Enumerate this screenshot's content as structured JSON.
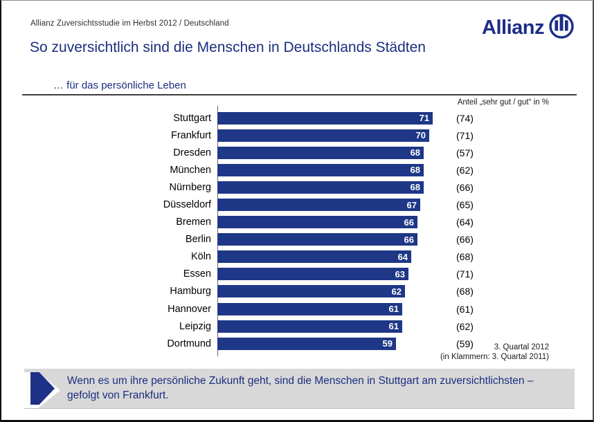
{
  "header": {
    "eyebrow": "Allianz Zuversichtsstudie im Herbst 2012 / Deutschland",
    "title": "So zuversichtlich sind die Menschen in Deutschlands Städten"
  },
  "logo": {
    "text": "Allianz",
    "icon": "allianz-circle-bars-logo",
    "color": "#1d2d87"
  },
  "chart_data": {
    "type": "bar",
    "orientation": "horizontal",
    "title": "… für das persönliche Leben",
    "value_note": "Anteil „sehr gut / gut“ in %",
    "categories": [
      "Stuttgart",
      "Frankfurt",
      "Dresden",
      "München",
      "Nürnberg",
      "Düsseldorf",
      "Bremen",
      "Berlin",
      "Köln",
      "Essen",
      "Hamburg",
      "Hannover",
      "Leipzig",
      "Dortmund"
    ],
    "series": [
      {
        "name": "3. Quartal 2012",
        "values": [
          71,
          70,
          68,
          68,
          68,
          67,
          66,
          66,
          64,
          63,
          62,
          61,
          61,
          59
        ]
      },
      {
        "name": "3. Quartal 2011 (in Klammern)",
        "values": [
          74,
          71,
          57,
          62,
          66,
          65,
          64,
          66,
          68,
          71,
          68,
          61,
          62,
          59
        ]
      }
    ],
    "xlim": [
      0,
      80
    ],
    "grid": false,
    "legend_position": "none",
    "bar_color": "#1e3787"
  },
  "footnote": {
    "line1": "3. Quartal 2012",
    "line2": "(in Klammern: 3. Quartal 2011)"
  },
  "callout": {
    "text": "Wenn es um ihre persönliche Zukunft geht, sind die Menschen in Stuttgart am zuversichtlichsten – gefolgt von Frankfurt.",
    "accent_color": "#1d3287",
    "background": "#d8d8d8"
  }
}
